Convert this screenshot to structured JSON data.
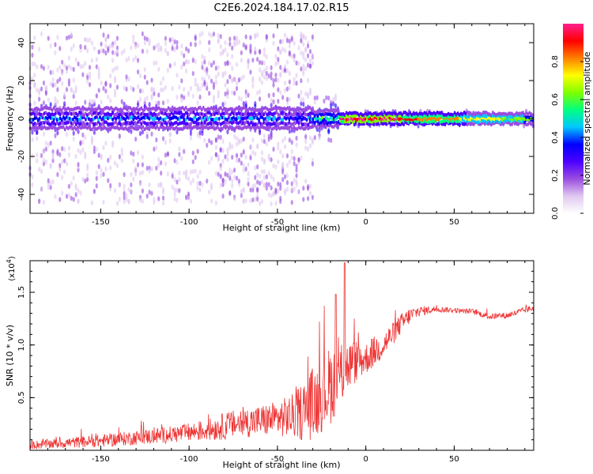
{
  "title": "C2E6.2024.184.17.02.R15",
  "chart_data": [
    {
      "type": "heatmap",
      "name": "spectrogram",
      "xlabel": "Height of straight line (km)",
      "ylabel": "Frequency (Hz)",
      "xlim": [
        -190,
        95
      ],
      "ylim": [
        -50,
        50
      ],
      "xticks": [
        -150,
        -100,
        -50,
        0,
        50
      ],
      "yticks": [
        -40,
        -20,
        0,
        20,
        40
      ],
      "colorbar": {
        "label": "Normalized spectral amplitude",
        "range": [
          0,
          1
        ],
        "ticks": [
          "0.0",
          "0.2",
          "0.4",
          "0.6",
          "0.8"
        ],
        "colors": [
          "#ffffff",
          "#e0c8f0",
          "#9a4ce0",
          "#4b00ff",
          "#0000ff",
          "#00c8ff",
          "#00ff80",
          "#7fff00",
          "#ffff00",
          "#ff8000",
          "#ff0000",
          "#ff1f8f"
        ]
      },
      "description_points": {
        "central_band_freq_hz": 0,
        "noisy_region_x": [
          -190,
          -30
        ],
        "strong_signal_x": [
          -15,
          95
        ]
      }
    },
    {
      "type": "line",
      "name": "snr",
      "xlabel": "Height of straight line (km)",
      "ylabel": "SNR (10 * v/v)",
      "exponent_label": "(x10",
      "exponent_sup": "4",
      "exponent_close": ")",
      "xlim": [
        -190,
        95
      ],
      "ylim": [
        0,
        18000
      ],
      "xticks": [
        -150,
        -100,
        -50,
        0,
        50
      ],
      "yticks": [
        0.5,
        1.0,
        1.5
      ],
      "ytick_labels": [
        "0.5",
        "1.0",
        "1.5"
      ],
      "color": "#ee3333",
      "series": [
        {
          "x": [
            -190,
            -170,
            -150,
            -130,
            -110,
            -90,
            -80,
            -70,
            -60,
            -50,
            -40,
            -35,
            -30,
            -25,
            -20,
            -15,
            -10,
            -5,
            0,
            5,
            10,
            15,
            20,
            25,
            30,
            40,
            50,
            55,
            60,
            70,
            80,
            90,
            95
          ],
          "y": [
            500,
            700,
            900,
            1200,
            1500,
            1900,
            2300,
            2600,
            2800,
            3000,
            3300,
            3800,
            4500,
            5200,
            6200,
            7000,
            8000,
            8500,
            8700,
            9400,
            10000,
            11000,
            12000,
            12800,
            13200,
            13400,
            13300,
            13200,
            13200,
            12700,
            12800,
            13300,
            13500
          ],
          "noise": [
            400,
            500,
            600,
            700,
            800,
            1000,
            1300,
            1400,
            1500,
            1700,
            2200,
            3000,
            3500,
            3500,
            3800,
            3000,
            2500,
            2000,
            1500,
            1500,
            1300,
            1100,
            1000,
            800,
            500,
            300,
            250,
            250,
            250,
            300,
            300,
            300,
            300
          ]
        }
      ]
    }
  ]
}
